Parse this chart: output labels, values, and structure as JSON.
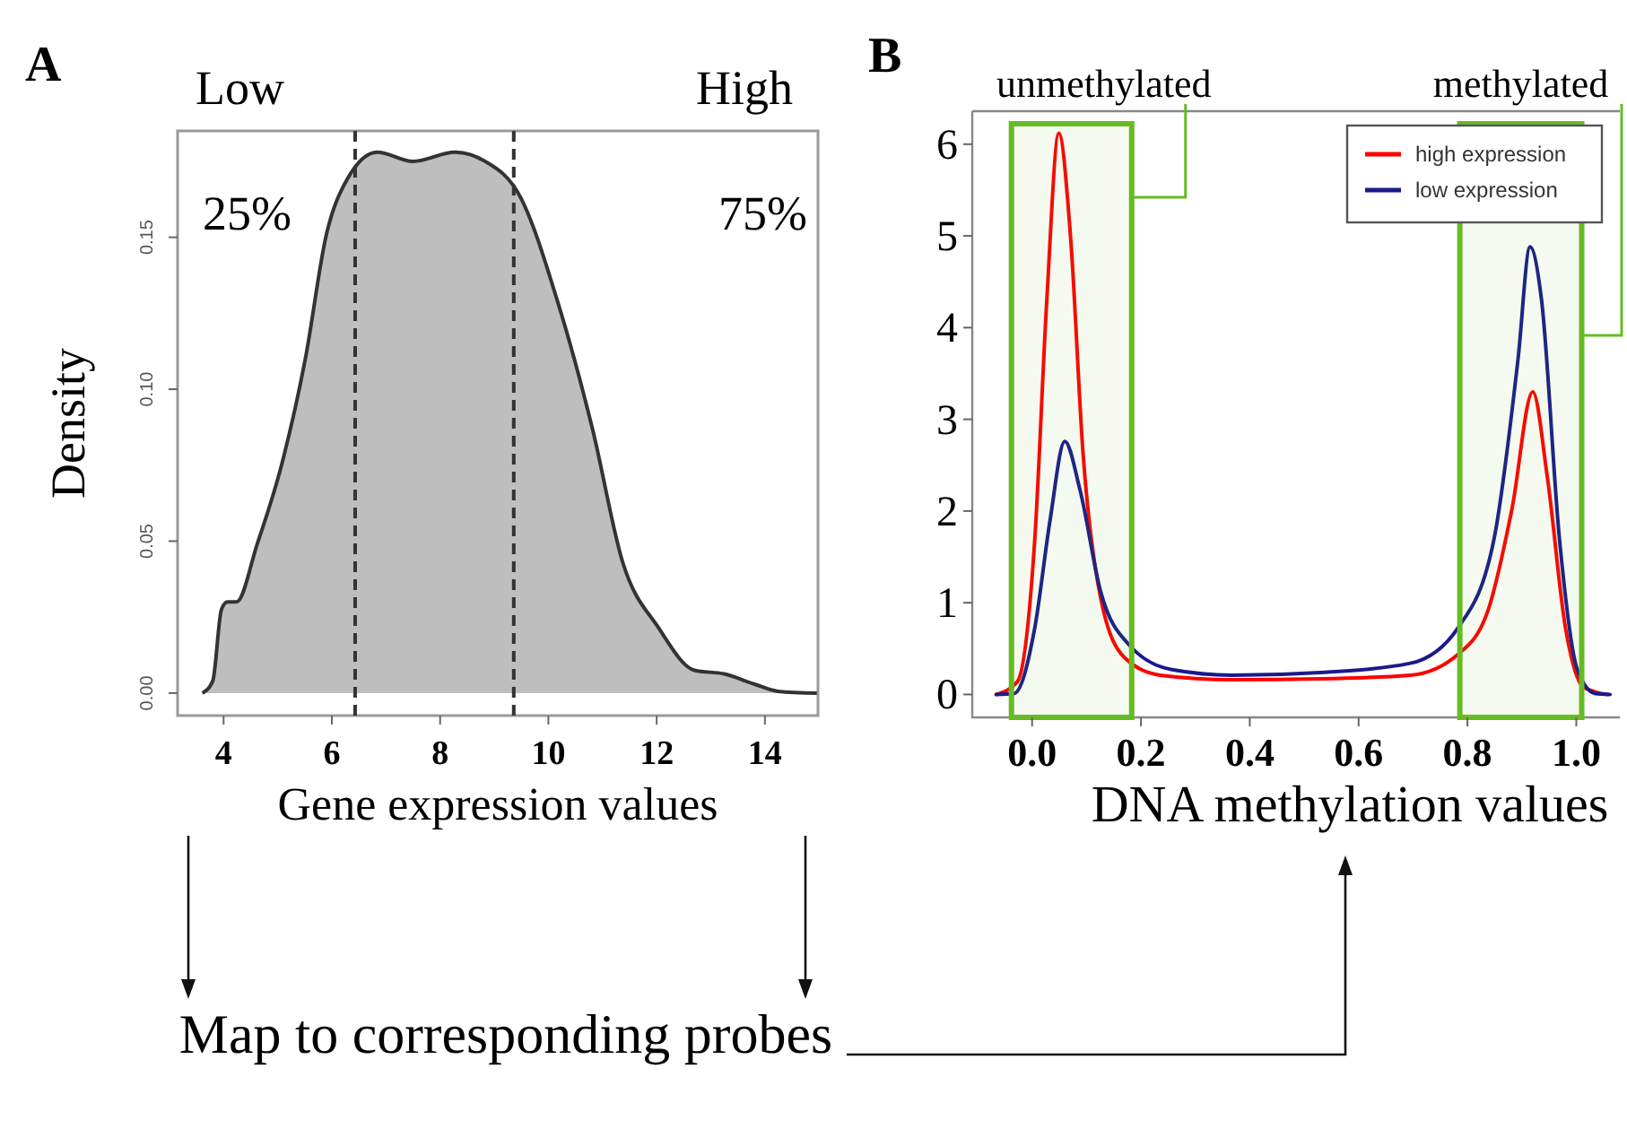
{
  "chart_data": [
    {
      "type": "area",
      "title": "A",
      "xlabel": "Gene expression values",
      "ylabel": "Density",
      "x": [
        3.61,
        3.8,
        3.96,
        4.07,
        4.24,
        4.62,
        5.07,
        5.51,
        5.9,
        6.28,
        6.84,
        7.5,
        8.27,
        8.83,
        9.49,
        10.15,
        10.82,
        11.37,
        12.03,
        12.7,
        13.25,
        13.8,
        14.24,
        14.96
      ],
      "values": [
        0,
        0.004,
        0.0275,
        0.03,
        0.03,
        0.049,
        0.075,
        0.11,
        0.151,
        0.169,
        0.178,
        0.175,
        0.178,
        0.175,
        0.163,
        0.13,
        0.0865,
        0.0432,
        0.0216,
        0.0075,
        0.0063,
        0.003,
        0.0006,
        0
      ],
      "color": "#bebebe",
      "xlim": [
        3.15,
        14.98
      ],
      "xticks": [
        4,
        6,
        8,
        10,
        12,
        14
      ],
      "ylim": [
        -0.0074,
        0.185
      ],
      "yticks": [
        {
          "value": 0,
          "label": "0.00"
        },
        {
          "value": 0.05,
          "label": "0.05"
        },
        {
          "value": 0.1,
          "label": "0.10"
        },
        {
          "value": 0.15,
          "label": "0.15"
        }
      ],
      "ref_lines": [
        {
          "axis": "x",
          "value": 6.43,
          "line_style": "dashed"
        },
        {
          "axis": "x",
          "value": 9.36,
          "line_style": "dashed"
        }
      ],
      "annotations": [
        "Low",
        "High",
        "25%",
        "75%",
        "Map to corresponding probes"
      ],
      "grid": false,
      "legend": false
    },
    {
      "type": "line",
      "title": "B",
      "xlabel": "DNA methylation values",
      "series": [
        {
          "name": "high expression",
          "color": "#ff0000",
          "x": [
            -0.066,
            -0.027,
            0.005,
            0.027,
            0.049,
            0.071,
            0.093,
            0.126,
            0.17,
            0.235,
            0.367,
            0.53,
            0.695,
            0.783,
            0.838,
            0.882,
            0.92,
            0.947,
            0.98,
            1.013,
            1.057
          ],
          "values": [
            0,
            0.14,
            1.7,
            4.3,
            6.12,
            4.96,
            2.68,
            1.05,
            0.4,
            0.21,
            0.16,
            0.17,
            0.21,
            0.44,
            0.92,
            2.03,
            3.3,
            2.36,
            0.73,
            0.08,
            0
          ]
        },
        {
          "name": "low expression",
          "color": "#1a1a8c",
          "x": [
            -0.066,
            -0.033,
            0.005,
            0.033,
            0.06,
            0.088,
            0.126,
            0.18,
            0.257,
            0.367,
            0.53,
            0.695,
            0.783,
            0.849,
            0.893,
            0.915,
            0.936,
            0.969,
            1.002,
            1.035,
            1.062
          ],
          "values": [
            0,
            0.01,
            0.73,
            1.9,
            2.76,
            2.23,
            1.12,
            0.53,
            0.27,
            0.21,
            0.24,
            0.34,
            0.73,
            1.7,
            3.66,
            4.88,
            4.31,
            1.7,
            0.27,
            0.01,
            0
          ]
        }
      ],
      "xlim": [
        -0.11,
        1.08
      ],
      "xticks": [
        {
          "value": 0,
          "label": "0.0"
        },
        0.2,
        0.4,
        0.6,
        0.8,
        {
          "value": 1,
          "label": "1.0"
        }
      ],
      "ylim": [
        -0.25,
        6.36
      ],
      "yticks": [
        0,
        1,
        2,
        3,
        4,
        5,
        6
      ],
      "bands": [
        {
          "axis": "x",
          "from": -0.038,
          "to": 0.183,
          "label": "unmethylated",
          "color": "#66bb22"
        },
        {
          "axis": "x",
          "from": 0.786,
          "to": 1.01,
          "label": "methylated",
          "color": "#66bb22"
        }
      ],
      "grid": false,
      "legend": "top right",
      "line_style": "solid",
      "marker": "none"
    }
  ]
}
